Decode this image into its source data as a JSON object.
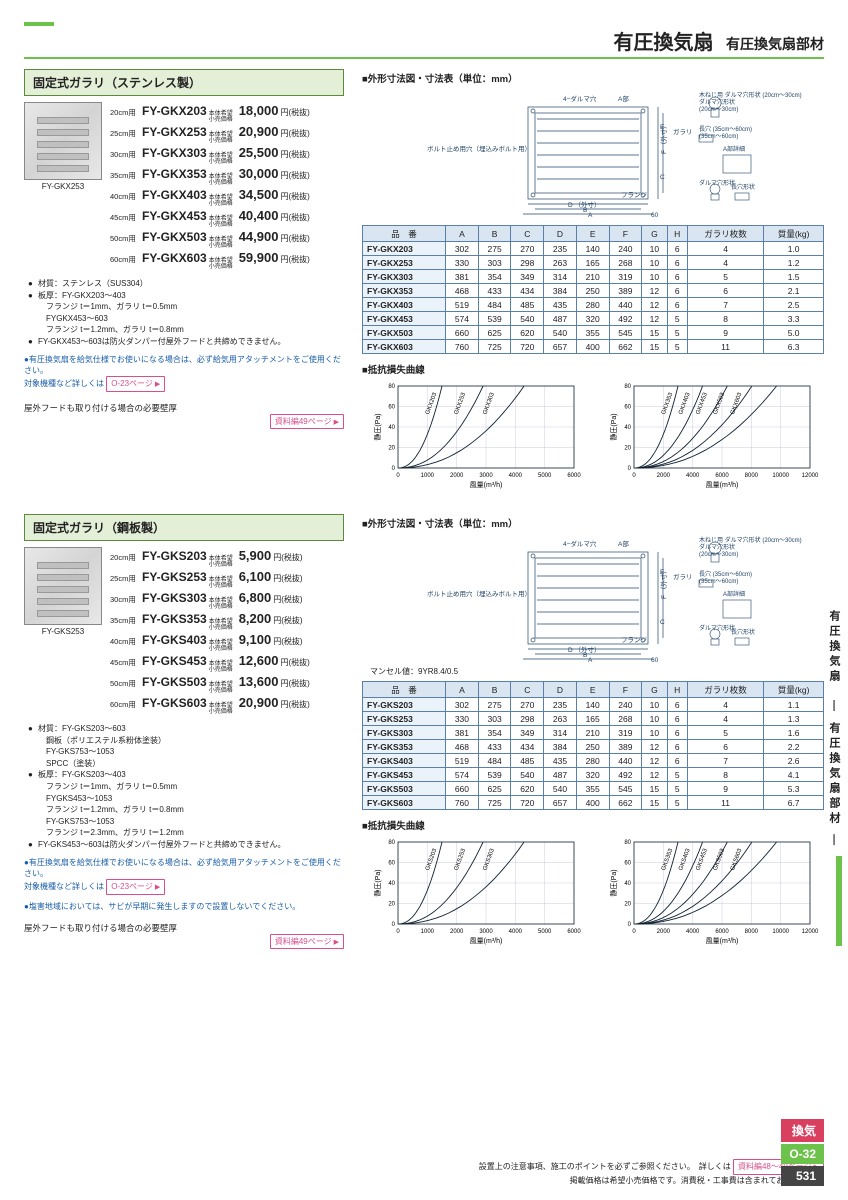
{
  "page": {
    "title_main": "有圧換気扇",
    "title_sub": "有圧換気扇部材",
    "page_number": "531",
    "side_label": "有圧換気扇　―  有圧換気扇部材  ―",
    "footer_line1": "設置上の注意事項、施工のポイントを必ずご参照ください。　詳しくは",
    "footer_btn": "資料編48〜49ページ",
    "footer_line2": "掲載価格は希望小売価格です。消費税・工事費は含まれておりません。",
    "tag_kanki": "換気",
    "tag_code": "O-32",
    "colors": {
      "accent_green": "#6cc24a",
      "head_green_bg": "#e4efd8",
      "th_blue_bg": "#d9e6f2",
      "td_blue_bg": "#eaf2fa",
      "border_blue": "#5a7fa8",
      "pink": "#d94f8a",
      "tag_red": "#d94060",
      "tag_green": "#6cc24a",
      "tag_dark": "#444444"
    }
  },
  "sections": [
    {
      "heading": "固定式ガラリ（ステンレス製）",
      "thumb_caption": "FY-GKX253",
      "prices": [
        {
          "size": "20cm用",
          "model": "FY-GKX203",
          "tags": "本体希望\n小売価格",
          "price": "18,000",
          "unit": "円(税抜)"
        },
        {
          "size": "25cm用",
          "model": "FY-GKX253",
          "tags": "本体希望\n小売価格",
          "price": "20,900",
          "unit": "円(税抜)"
        },
        {
          "size": "30cm用",
          "model": "FY-GKX303",
          "tags": "本体希望\n小売価格",
          "price": "25,500",
          "unit": "円(税抜)"
        },
        {
          "size": "35cm用",
          "model": "FY-GKX353",
          "tags": "本体希望\n小売価格",
          "price": "30,000",
          "unit": "円(税抜)"
        },
        {
          "size": "40cm用",
          "model": "FY-GKX403",
          "tags": "本体希望\n小売価格",
          "price": "34,500",
          "unit": "円(税抜)"
        },
        {
          "size": "45cm用",
          "model": "FY-GKX453",
          "tags": "本体希望\n小売価格",
          "price": "40,400",
          "unit": "円(税抜)"
        },
        {
          "size": "50cm用",
          "model": "FY-GKX503",
          "tags": "本体希望\n小売価格",
          "price": "44,900",
          "unit": "円(税抜)"
        },
        {
          "size": "60cm用",
          "model": "FY-GKX603",
          "tags": "本体希望\n小売価格",
          "price": "59,900",
          "unit": "円(税抜)"
        }
      ],
      "bullets": [
        "材質：ステンレス（SUS304）",
        "板厚：FY-GKX203〜403\n　フランジ t＝1mm、ガラリ t＝0.5mm\n　FYGKX453〜603\n　フランジ t＝1.2mm、ガラリ t＝0.8mm",
        "FY-GKX453〜603は防火ダンパー付屋外フードと共締めできません。"
      ],
      "blue_note": "有圧換気扇を給気仕様でお使いになる場合は、必ず給気用アタッチメントをご使用ください。\n対象機種など詳しくは",
      "blue_btn": "O-23ページ",
      "wall_note": "屋外フードも取り付ける場合の必要壁厚",
      "wall_btn": "資料編49ページ",
      "dim_heading": "■外形寸法図・寸法表（単位：mm）",
      "dim_labels": {
        "a": "4−ダルマ穴",
        "b": "A部",
        "c": "ボルト止め用穴（埋込みボルト用）",
        "d": "フランジ",
        "e": "ガラリ",
        "f": "木ねじ用\nダルマ穴形状\n(20cm〜30cm)",
        "g": "長穴\n(35cm〜60cm)",
        "h": "A部詳細",
        "i": "ダルマ穴形状",
        "j": "長穴形状",
        "k": "D （外寸）",
        "l": "F （外寸）",
        "m": "60"
      },
      "table_headers": [
        "品　番",
        "A",
        "B",
        "C",
        "D",
        "E",
        "F",
        "G",
        "H",
        "ガラリ枚数",
        "質量(kg)"
      ],
      "table_rows": [
        [
          "FY-GKX203",
          "302",
          "275",
          "270",
          "235",
          "140",
          "240",
          "10",
          "6",
          "4",
          "1.0"
        ],
        [
          "FY-GKX253",
          "330",
          "303",
          "298",
          "263",
          "165",
          "268",
          "10",
          "6",
          "4",
          "1.2"
        ],
        [
          "FY-GKX303",
          "381",
          "354",
          "349",
          "314",
          "210",
          "319",
          "10",
          "6",
          "5",
          "1.5"
        ],
        [
          "FY-GKX353",
          "468",
          "433",
          "434",
          "384",
          "250",
          "389",
          "12",
          "6",
          "6",
          "2.1"
        ],
        [
          "FY-GKX403",
          "519",
          "484",
          "485",
          "435",
          "280",
          "440",
          "12",
          "6",
          "7",
          "2.5"
        ],
        [
          "FY-GKX453",
          "574",
          "539",
          "540",
          "487",
          "320",
          "492",
          "12",
          "5",
          "8",
          "3.3"
        ],
        [
          "FY-GKX503",
          "660",
          "625",
          "620",
          "540",
          "355",
          "545",
          "15",
          "5",
          "9",
          "5.0"
        ],
        [
          "FY-GKX603",
          "760",
          "725",
          "720",
          "657",
          "400",
          "662",
          "15",
          "5",
          "11",
          "6.3"
        ]
      ],
      "loss_heading": "■抵抗損失曲線",
      "charts": [
        {
          "ylabel": "静圧(Pa)",
          "xlabel": "風量(m³/h)",
          "ylim": [
            0,
            80
          ],
          "ytick": 20,
          "xlim": [
            0,
            6000
          ],
          "xtick": 1000,
          "curves": [
            "GKX203",
            "GKX253",
            "GKX303"
          ]
        },
        {
          "ylabel": "静圧(Pa)",
          "xlabel": "風量(m³/h)",
          "ylim": [
            0,
            80
          ],
          "ytick": 20,
          "xlim": [
            0,
            12000
          ],
          "xtick": 2000,
          "curves": [
            "GKX353",
            "GKX403",
            "GKX453",
            "GKX503",
            "GKX603"
          ]
        }
      ]
    },
    {
      "heading": "固定式ガラリ（鋼板製）",
      "thumb_caption": "FY-GKS253",
      "prices": [
        {
          "size": "20cm用",
          "model": "FY-GKS203",
          "tags": "本体希望\n小売価格",
          "price": "5,900",
          "unit": "円(税抜)"
        },
        {
          "size": "25cm用",
          "model": "FY-GKS253",
          "tags": "本体希望\n小売価格",
          "price": "6,100",
          "unit": "円(税抜)"
        },
        {
          "size": "30cm用",
          "model": "FY-GKS303",
          "tags": "本体希望\n小売価格",
          "price": "6,800",
          "unit": "円(税抜)"
        },
        {
          "size": "35cm用",
          "model": "FY-GKS353",
          "tags": "本体希望\n小売価格",
          "price": "8,200",
          "unit": "円(税抜)"
        },
        {
          "size": "40cm用",
          "model": "FY-GKS403",
          "tags": "本体希望\n小売価格",
          "price": "9,100",
          "unit": "円(税抜)"
        },
        {
          "size": "45cm用",
          "model": "FY-GKS453",
          "tags": "本体希望\n小売価格",
          "price": "12,600",
          "unit": "円(税抜)"
        },
        {
          "size": "50cm用",
          "model": "FY-GKS503",
          "tags": "本体希望\n小売価格",
          "price": "13,600",
          "unit": "円(税抜)"
        },
        {
          "size": "60cm用",
          "model": "FY-GKS603",
          "tags": "本体希望\n小売価格",
          "price": "20,900",
          "unit": "円(税抜)"
        }
      ],
      "bullets": [
        "材質：FY-GKS203〜603\n　鋼板（ポリエステル系粉体塗装）\n　FY-GKS753〜1053\n　SPCC（塗装）",
        "板厚：FY-GKS203〜403\n　フランジ t＝1mm、ガラリ t＝0.5mm\n　FYGKS453〜1053\n　フランジ t＝1.2mm、ガラリ t＝0.8mm\n　FY-GKS753〜1053\n　フランジ t＝2.3mm、ガラリ t＝1.2mm",
        "FY-GKS453〜603は防火ダンパー付屋外フードと共締めできません。"
      ],
      "blue_note": "有圧換気扇を給気仕様でお使いになる場合は、必ず給気用アタッチメントをご使用ください。\n対象機種など詳しくは",
      "blue_btn": "O-23ページ",
      "blue_note2": "塩害地域においては、サビが早期に発生しますので設置しないでください。",
      "wall_note": "屋外フードも取り付ける場合の必要壁厚",
      "wall_btn": "資料編49ページ",
      "dim_heading": "■外形寸法図・寸法表（単位：mm）",
      "munsell": "マンセル値：9YR8.4/0.5",
      "table_headers": [
        "品　番",
        "A",
        "B",
        "C",
        "D",
        "E",
        "F",
        "G",
        "H",
        "ガラリ枚数",
        "質量(kg)"
      ],
      "table_rows": [
        [
          "FY-GKS203",
          "302",
          "275",
          "270",
          "235",
          "140",
          "240",
          "10",
          "6",
          "4",
          "1.1"
        ],
        [
          "FY-GKS253",
          "330",
          "303",
          "298",
          "263",
          "165",
          "268",
          "10",
          "6",
          "4",
          "1.3"
        ],
        [
          "FY-GKS303",
          "381",
          "354",
          "349",
          "314",
          "210",
          "319",
          "10",
          "6",
          "5",
          "1.6"
        ],
        [
          "FY-GKS353",
          "468",
          "433",
          "434",
          "384",
          "250",
          "389",
          "12",
          "6",
          "6",
          "2.2"
        ],
        [
          "FY-GKS403",
          "519",
          "484",
          "485",
          "435",
          "280",
          "440",
          "12",
          "6",
          "7",
          "2.6"
        ],
        [
          "FY-GKS453",
          "574",
          "539",
          "540",
          "487",
          "320",
          "492",
          "12",
          "5",
          "8",
          "4.1"
        ],
        [
          "FY-GKS503",
          "660",
          "625",
          "620",
          "540",
          "355",
          "545",
          "15",
          "5",
          "9",
          "5.3"
        ],
        [
          "FY-GKS603",
          "760",
          "725",
          "720",
          "657",
          "400",
          "662",
          "15",
          "5",
          "11",
          "6.7"
        ]
      ],
      "loss_heading": "■抵抗損失曲線",
      "charts": [
        {
          "ylabel": "静圧(Pa)",
          "xlabel": "風量(m³/h)",
          "ylim": [
            0,
            80
          ],
          "ytick": 20,
          "xlim": [
            0,
            6000
          ],
          "xtick": 1000,
          "curves": [
            "GKS203",
            "GKS253",
            "GKS303"
          ]
        },
        {
          "ylabel": "静圧(Pa)",
          "xlabel": "風量(m³/h)",
          "ylim": [
            0,
            80
          ],
          "ytick": 20,
          "xlim": [
            0,
            12000
          ],
          "xtick": 2000,
          "curves": [
            "GKS353",
            "GKS403",
            "GKS453",
            "GKS503",
            "GKS603"
          ]
        }
      ]
    }
  ]
}
